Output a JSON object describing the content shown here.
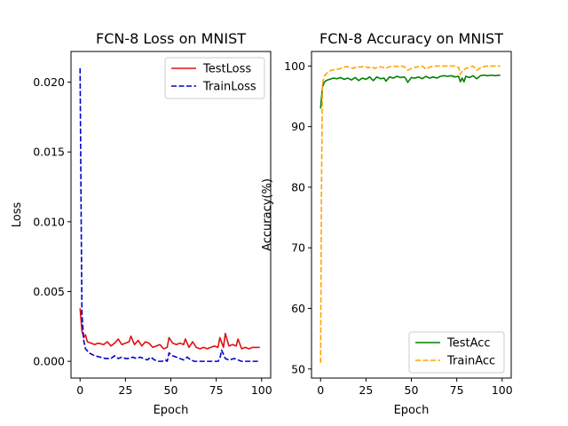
{
  "chart_data": [
    {
      "type": "line",
      "title": "FCN-8 Loss on MNIST",
      "xlabel": "Epoch",
      "ylabel": "Loss",
      "xlim": [
        -5,
        105
      ],
      "ylim": [
        -0.0012,
        0.0222
      ],
      "xticks": [
        0,
        25,
        50,
        75,
        100
      ],
      "yticks": [
        0.0,
        0.005,
        0.01,
        0.015,
        0.02
      ],
      "ytick_labels": [
        "0.000",
        "0.005",
        "0.010",
        "0.015",
        "0.020"
      ],
      "legend_position": "top-right",
      "grid": false,
      "series": [
        {
          "name": "TestLoss",
          "color": "#e01010",
          "style": "solid",
          "points": [
            [
              0,
              0.0038
            ],
            [
              1,
              0.0022
            ],
            [
              2,
              0.0017
            ],
            [
              3,
              0.0019
            ],
            [
              4,
              0.0014
            ],
            [
              6,
              0.0013
            ],
            [
              8,
              0.0012
            ],
            [
              10,
              0.0013
            ],
            [
              13,
              0.0012
            ],
            [
              15,
              0.0014
            ],
            [
              17,
              0.0011
            ],
            [
              19,
              0.0013
            ],
            [
              21,
              0.0016
            ],
            [
              23,
              0.0012
            ],
            [
              25,
              0.0013
            ],
            [
              27,
              0.0014
            ],
            [
              28,
              0.0018
            ],
            [
              30,
              0.0012
            ],
            [
              32,
              0.0015
            ],
            [
              34,
              0.0011
            ],
            [
              36,
              0.0014
            ],
            [
              38,
              0.0013
            ],
            [
              40,
              0.001
            ],
            [
              42,
              0.0011
            ],
            [
              44,
              0.0012
            ],
            [
              46,
              0.0009
            ],
            [
              48,
              0.001
            ],
            [
              49,
              0.0017
            ],
            [
              51,
              0.0013
            ],
            [
              53,
              0.0012
            ],
            [
              55,
              0.0013
            ],
            [
              57,
              0.0012
            ],
            [
              58,
              0.0016
            ],
            [
              60,
              0.001
            ],
            [
              62,
              0.0014
            ],
            [
              64,
              0.001
            ],
            [
              66,
              0.0009
            ],
            [
              68,
              0.001
            ],
            [
              70,
              0.0009
            ],
            [
              72,
              0.001
            ],
            [
              74,
              0.0011
            ],
            [
              76,
              0.001
            ],
            [
              77,
              0.0017
            ],
            [
              79,
              0.001
            ],
            [
              80,
              0.002
            ],
            [
              82,
              0.0011
            ],
            [
              84,
              0.0012
            ],
            [
              86,
              0.0011
            ],
            [
              87,
              0.0016
            ],
            [
              89,
              0.0009
            ],
            [
              91,
              0.001
            ],
            [
              93,
              0.0009
            ],
            [
              95,
              0.001
            ],
            [
              97,
              0.001
            ],
            [
              99,
              0.001
            ]
          ]
        },
        {
          "name": "TrainLoss",
          "color": "#0000cc",
          "style": "dashed",
          "points": [
            [
              0,
              0.021
            ],
            [
              0.5,
              0.012
            ],
            [
              1,
              0.0035
            ],
            [
              2,
              0.0015
            ],
            [
              3,
              0.0009
            ],
            [
              5,
              0.0006
            ],
            [
              8,
              0.0004
            ],
            [
              11,
              0.0003
            ],
            [
              14,
              0.0002
            ],
            [
              17,
              0.0002
            ],
            [
              19,
              0.0004
            ],
            [
              21,
              0.0002
            ],
            [
              23,
              0.0003
            ],
            [
              25,
              0.0002
            ],
            [
              27,
              0.0002
            ],
            [
              29,
              0.0003
            ],
            [
              31,
              0.0002
            ],
            [
              33,
              0.0003
            ],
            [
              35,
              0.0002
            ],
            [
              37,
              0.0001
            ],
            [
              39,
              0.0003
            ],
            [
              41,
              0.0001
            ],
            [
              43,
              0.0
            ],
            [
              45,
              0.0
            ],
            [
              47,
              0.0001
            ],
            [
              48,
              0.0
            ],
            [
              49,
              0.0006
            ],
            [
              51,
              0.0004
            ],
            [
              53,
              0.0003
            ],
            [
              55,
              0.0002
            ],
            [
              57,
              0.0001
            ],
            [
              59,
              0.0003
            ],
            [
              61,
              0.0001
            ],
            [
              63,
              0.0
            ],
            [
              66,
              0.0
            ],
            [
              70,
              0.0
            ],
            [
              74,
              0.0
            ],
            [
              76,
              0.0
            ],
            [
              77,
              0.0002
            ],
            [
              78,
              0.0008
            ],
            [
              80,
              0.0002
            ],
            [
              82,
              0.0001
            ],
            [
              85,
              0.0002
            ],
            [
              87,
              0.0001
            ],
            [
              89,
              0.0
            ],
            [
              92,
              0.0
            ],
            [
              95,
              0.0
            ],
            [
              99,
              0.0
            ]
          ]
        }
      ]
    },
    {
      "type": "line",
      "title": "FCN-8 Accuracy on MNIST",
      "xlabel": "Epoch",
      "ylabel": "Accuracy(%)",
      "xlim": [
        -5,
        105
      ],
      "ylim": [
        48.5,
        102.4
      ],
      "xticks": [
        0,
        25,
        50,
        75,
        100
      ],
      "yticks": [
        50,
        60,
        70,
        80,
        90,
        100
      ],
      "ytick_labels": [
        "50",
        "60",
        "70",
        "80",
        "90",
        "100"
      ],
      "legend_position": "bottom-right",
      "grid": false,
      "series": [
        {
          "name": "TestAcc",
          "color": "#008000",
          "style": "solid",
          "points": [
            [
              0,
              93.0
            ],
            [
              1,
              96.5
            ],
            [
              2,
              97.3
            ],
            [
              3,
              97.6
            ],
            [
              5,
              97.8
            ],
            [
              7,
              98.0
            ],
            [
              9,
              97.9
            ],
            [
              11,
              98.1
            ],
            [
              13,
              97.8
            ],
            [
              15,
              98.0
            ],
            [
              17,
              97.7
            ],
            [
              19,
              98.1
            ],
            [
              21,
              97.6
            ],
            [
              23,
              98.0
            ],
            [
              25,
              97.8
            ],
            [
              27,
              98.2
            ],
            [
              29,
              97.6
            ],
            [
              31,
              98.2
            ],
            [
              33,
              97.9
            ],
            [
              35,
              98.0
            ],
            [
              36,
              97.5
            ],
            [
              38,
              98.2
            ],
            [
              40,
              98.0
            ],
            [
              42,
              98.3
            ],
            [
              44,
              98.1
            ],
            [
              46,
              98.2
            ],
            [
              47,
              97.9
            ],
            [
              48,
              97.3
            ],
            [
              50,
              98.1
            ],
            [
              52,
              98.0
            ],
            [
              54,
              98.2
            ],
            [
              56,
              97.9
            ],
            [
              58,
              98.3
            ],
            [
              60,
              98.0
            ],
            [
              62,
              98.2
            ],
            [
              64,
              98.0
            ],
            [
              66,
              98.3
            ],
            [
              68,
              98.4
            ],
            [
              70,
              98.3
            ],
            [
              72,
              98.4
            ],
            [
              74,
              98.2
            ],
            [
              76,
              98.3
            ],
            [
              77,
              97.4
            ],
            [
              78,
              98.0
            ],
            [
              79,
              97.4
            ],
            [
              80,
              98.3
            ],
            [
              82,
              98.1
            ],
            [
              84,
              98.4
            ],
            [
              86,
              97.9
            ],
            [
              88,
              98.4
            ],
            [
              90,
              98.5
            ],
            [
              92,
              98.4
            ],
            [
              94,
              98.5
            ],
            [
              96,
              98.4
            ],
            [
              99,
              98.5
            ]
          ]
        },
        {
          "name": "TrainAcc",
          "color": "#ffa500",
          "style": "dashed",
          "points": [
            [
              0,
              51.0
            ],
            [
              0.5,
              80.0
            ],
            [
              1,
              97.0
            ],
            [
              2,
              98.3
            ],
            [
              4,
              99.0
            ],
            [
              6,
              99.3
            ],
            [
              8,
              99.4
            ],
            [
              10,
              99.5
            ],
            [
              12,
              99.7
            ],
            [
              14,
              99.9
            ],
            [
              16,
              99.8
            ],
            [
              18,
              99.6
            ],
            [
              20,
              99.9
            ],
            [
              22,
              99.8
            ],
            [
              24,
              100.0
            ],
            [
              26,
              99.7
            ],
            [
              28,
              99.9
            ],
            [
              30,
              99.6
            ],
            [
              32,
              99.9
            ],
            [
              34,
              99.8
            ],
            [
              36,
              99.6
            ],
            [
              38,
              99.9
            ],
            [
              40,
              100.0
            ],
            [
              42,
              99.9
            ],
            [
              44,
              100.0
            ],
            [
              46,
              99.9
            ],
            [
              48,
              99.3
            ],
            [
              50,
              99.6
            ],
            [
              52,
              99.8
            ],
            [
              54,
              99.9
            ],
            [
              56,
              100.0
            ],
            [
              58,
              99.5
            ],
            [
              60,
              99.8
            ],
            [
              62,
              100.0
            ],
            [
              64,
              100.0
            ],
            [
              66,
              100.0
            ],
            [
              68,
              100.0
            ],
            [
              70,
              100.0
            ],
            [
              72,
              100.0
            ],
            [
              74,
              100.0
            ],
            [
              76,
              99.8
            ],
            [
              77,
              98.6
            ],
            [
              78,
              99.2
            ],
            [
              80,
              99.6
            ],
            [
              82,
              99.8
            ],
            [
              84,
              100.0
            ],
            [
              86,
              99.3
            ],
            [
              88,
              99.7
            ],
            [
              90,
              99.9
            ],
            [
              92,
              100.0
            ],
            [
              94,
              100.0
            ],
            [
              96,
              100.0
            ],
            [
              99,
              100.0
            ]
          ]
        }
      ]
    }
  ]
}
